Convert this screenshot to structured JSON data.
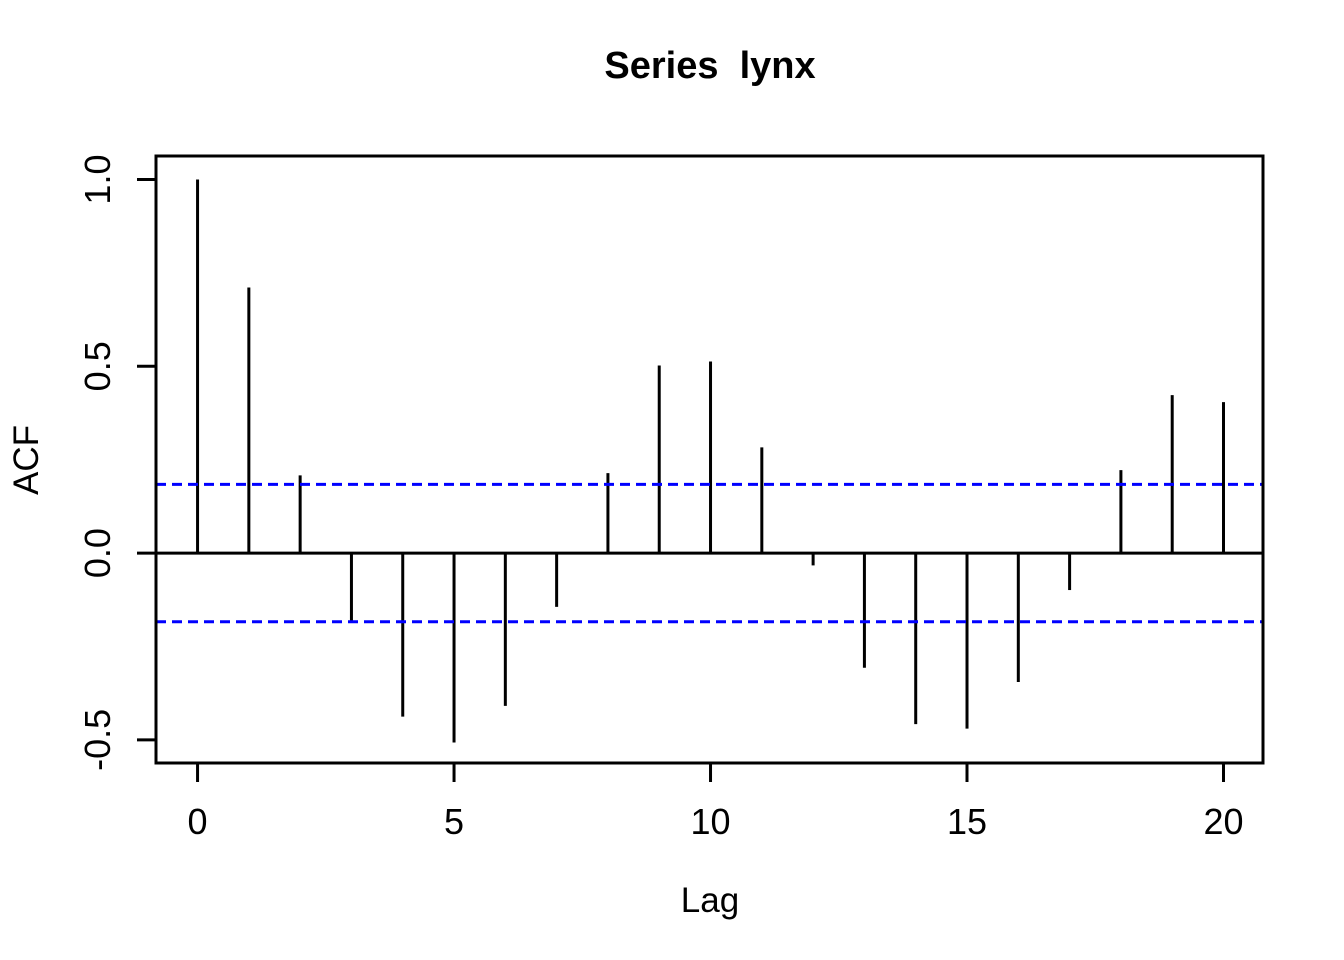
{
  "figure": {
    "title": "Series  lynx",
    "x_axis": {
      "label": "Lag",
      "tick_labels": [
        "0",
        "5",
        "10",
        "15",
        "20"
      ]
    },
    "y_axis": {
      "label": "ACF",
      "tick_labels": [
        "-0.5",
        "0.0",
        "0.5",
        "1.0"
      ]
    }
  },
  "colors": {
    "spike": "#000000",
    "axis": "#000000",
    "text": "#000000",
    "confidence_line": "#0000FF",
    "background": "#FFFFFF"
  },
  "chart_data": {
    "type": "bar",
    "subtype": "acf-spike-plot",
    "title": "Series  lynx",
    "xlabel": "Lag",
    "ylabel": "ACF",
    "x": [
      0,
      1,
      2,
      3,
      4,
      5,
      6,
      7,
      8,
      9,
      10,
      11,
      12,
      13,
      14,
      15,
      16,
      17,
      18,
      19,
      20
    ],
    "values": [
      1.0,
      0.711,
      0.208,
      -0.184,
      -0.438,
      -0.507,
      -0.409,
      -0.144,
      0.214,
      0.502,
      0.513,
      0.283,
      -0.033,
      -0.307,
      -0.458,
      -0.47,
      -0.345,
      -0.099,
      0.222,
      0.423,
      0.404
    ],
    "confidence_bounds": [
      0.184,
      -0.184
    ],
    "confidence_line_style": "dashed",
    "x_ticks": [
      0,
      5,
      10,
      15,
      20
    ],
    "x_tick_labels": [
      "0",
      "5",
      "10",
      "15",
      "20"
    ],
    "y_ticks": [
      -0.5,
      0.0,
      0.5,
      1.0
    ],
    "y_tick_labels": [
      "-0.5",
      "0.0",
      "0.5",
      "1.0"
    ],
    "xlim": [
      -0.81,
      20.77
    ],
    "ylim": [
      -0.562,
      1.063
    ],
    "zero_line": 0,
    "grid": false,
    "legend": "none"
  }
}
